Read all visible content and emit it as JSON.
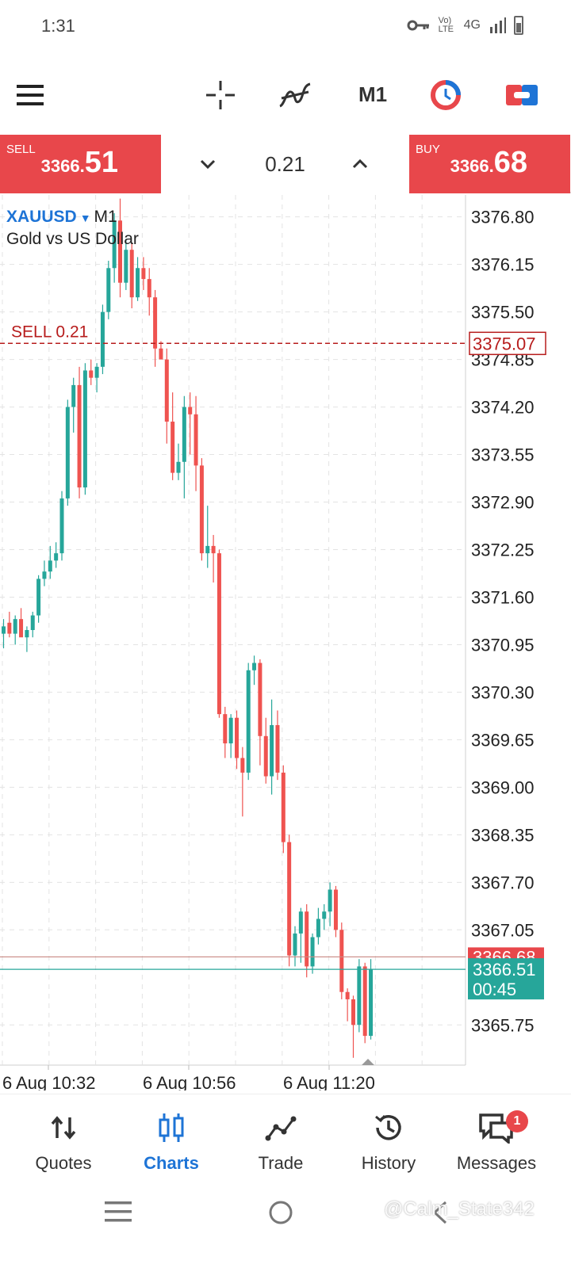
{
  "status_bar": {
    "time": "1:31",
    "network": "Vo) LTE",
    "signal_type": "4G"
  },
  "toolbar": {
    "timeframe": "M1",
    "icons": [
      "menu-icon",
      "crosshair-icon",
      "indicators-icon",
      "timeframe",
      "chart-timer-icon",
      "one-click-trading-icon"
    ]
  },
  "trade_panel": {
    "sell_label": "SELL",
    "sell_price_small": "3366.",
    "sell_price_big": "51",
    "buy_label": "BUY",
    "buy_price_small": "3366.",
    "buy_price_big": "68",
    "volume": "0.21"
  },
  "chart": {
    "symbol": "XAUUSD",
    "timeframe": "M1",
    "description": "Gold vs US Dollar",
    "sell_position_label": "SELL 0.21",
    "sell_position_price": "3375.07",
    "ask_label": "3366.68",
    "bid_label": "3366.51",
    "timer": "00:45",
    "colors": {
      "bull": "#26a69a",
      "bear": "#ef5350",
      "position": "#b71c1c"
    }
  },
  "chart_data": {
    "type": "candlestick",
    "title": "XAUUSD, M1",
    "subtitle": "Gold vs US Dollar",
    "y_tick_labels": [
      "3376.80",
      "3376.15",
      "3375.50",
      "3374.85",
      "3374.20",
      "3373.55",
      "3372.90",
      "3372.25",
      "3371.60",
      "3370.95",
      "3370.30",
      "3369.65",
      "3369.00",
      "3368.35",
      "3367.70",
      "3367.05",
      "3365.75"
    ],
    "x_tick_labels": [
      "6 Aug 10:32",
      "6 Aug 10:56",
      "6 Aug 11:20"
    ],
    "ylim": [
      3365.2,
      3377.1
    ],
    "ask": 3366.68,
    "bid": 3366.51,
    "sell_position": {
      "volume": 0.21,
      "price": 3375.07
    },
    "candles": [
      {
        "o": 3371.1,
        "h": 3371.3,
        "l": 3370.9,
        "c": 3371.2
      },
      {
        "o": 3371.25,
        "h": 3371.4,
        "l": 3371.05,
        "c": 3371.1
      },
      {
        "o": 3371.1,
        "h": 3371.35,
        "l": 3370.95,
        "c": 3371.3
      },
      {
        "o": 3371.3,
        "h": 3371.45,
        "l": 3371.1,
        "c": 3371.05
      },
      {
        "o": 3371.05,
        "h": 3371.2,
        "l": 3370.85,
        "c": 3371.15
      },
      {
        "o": 3371.15,
        "h": 3371.4,
        "l": 3371.05,
        "c": 3371.35
      },
      {
        "o": 3371.35,
        "h": 3371.9,
        "l": 3371.25,
        "c": 3371.85
      },
      {
        "o": 3371.85,
        "h": 3372.1,
        "l": 3371.75,
        "c": 3371.95
      },
      {
        "o": 3371.95,
        "h": 3372.3,
        "l": 3371.85,
        "c": 3372.1
      },
      {
        "o": 3372.1,
        "h": 3372.35,
        "l": 3372.0,
        "c": 3372.2
      },
      {
        "o": 3372.2,
        "h": 3373.05,
        "l": 3372.1,
        "c": 3372.95
      },
      {
        "o": 3372.95,
        "h": 3374.3,
        "l": 3372.85,
        "c": 3374.2
      },
      {
        "o": 3374.2,
        "h": 3374.6,
        "l": 3373.85,
        "c": 3374.5
      },
      {
        "o": 3374.5,
        "h": 3374.75,
        "l": 3372.95,
        "c": 3373.1
      },
      {
        "o": 3373.1,
        "h": 3374.8,
        "l": 3373.0,
        "c": 3374.7
      },
      {
        "o": 3374.7,
        "h": 3374.85,
        "l": 3374.5,
        "c": 3374.6
      },
      {
        "o": 3374.6,
        "h": 3374.8,
        "l": 3374.4,
        "c": 3374.75
      },
      {
        "o": 3374.75,
        "h": 3375.6,
        "l": 3374.65,
        "c": 3375.5
      },
      {
        "o": 3375.5,
        "h": 3376.2,
        "l": 3375.4,
        "c": 3376.1
      },
      {
        "o": 3376.1,
        "h": 3376.85,
        "l": 3375.9,
        "c": 3376.75
      },
      {
        "o": 3376.75,
        "h": 3377.05,
        "l": 3375.7,
        "c": 3375.9
      },
      {
        "o": 3375.9,
        "h": 3376.5,
        "l": 3375.8,
        "c": 3376.35
      },
      {
        "o": 3376.35,
        "h": 3376.45,
        "l": 3375.55,
        "c": 3375.7
      },
      {
        "o": 3375.7,
        "h": 3376.25,
        "l": 3375.65,
        "c": 3376.1
      },
      {
        "o": 3376.1,
        "h": 3376.25,
        "l": 3375.8,
        "c": 3375.95
      },
      {
        "o": 3375.95,
        "h": 3376.1,
        "l": 3375.45,
        "c": 3375.7
      },
      {
        "o": 3375.7,
        "h": 3375.8,
        "l": 3374.75,
        "c": 3375.0
      },
      {
        "o": 3375.0,
        "h": 3375.1,
        "l": 3374.9,
        "c": 3374.85
      },
      {
        "o": 3374.85,
        "h": 3375.0,
        "l": 3373.7,
        "c": 3374.0
      },
      {
        "o": 3374.0,
        "h": 3374.4,
        "l": 3373.2,
        "c": 3373.3
      },
      {
        "o": 3373.3,
        "h": 3373.7,
        "l": 3373.2,
        "c": 3373.45
      },
      {
        "o": 3373.45,
        "h": 3374.35,
        "l": 3372.95,
        "c": 3374.2
      },
      {
        "o": 3374.2,
        "h": 3374.4,
        "l": 3373.55,
        "c": 3374.1
      },
      {
        "o": 3374.1,
        "h": 3374.35,
        "l": 3373.05,
        "c": 3373.4
      },
      {
        "o": 3373.4,
        "h": 3373.5,
        "l": 3372.1,
        "c": 3372.2
      },
      {
        "o": 3372.2,
        "h": 3372.85,
        "l": 3372.0,
        "c": 3372.3
      },
      {
        "o": 3372.3,
        "h": 3372.45,
        "l": 3371.8,
        "c": 3372.2
      },
      {
        "o": 3372.2,
        "h": 3372.25,
        "l": 3369.95,
        "c": 3370.0
      },
      {
        "o": 3370.0,
        "h": 3370.1,
        "l": 3369.4,
        "c": 3369.6
      },
      {
        "o": 3369.6,
        "h": 3370.0,
        "l": 3369.4,
        "c": 3369.95
      },
      {
        "o": 3369.95,
        "h": 3370.05,
        "l": 3369.25,
        "c": 3369.4
      },
      {
        "o": 3369.4,
        "h": 3369.55,
        "l": 3368.6,
        "c": 3369.2
      },
      {
        "o": 3369.2,
        "h": 3370.7,
        "l": 3369.1,
        "c": 3370.6
      },
      {
        "o": 3370.6,
        "h": 3370.8,
        "l": 3370.4,
        "c": 3370.7
      },
      {
        "o": 3370.7,
        "h": 3370.75,
        "l": 3369.3,
        "c": 3369.7
      },
      {
        "o": 3369.7,
        "h": 3369.95,
        "l": 3369.05,
        "c": 3369.15
      },
      {
        "o": 3369.15,
        "h": 3370.2,
        "l": 3368.9,
        "c": 3369.85
      },
      {
        "o": 3369.85,
        "h": 3370.05,
        "l": 3369.1,
        "c": 3369.2
      },
      {
        "o": 3369.2,
        "h": 3369.3,
        "l": 3368.1,
        "c": 3368.25
      },
      {
        "o": 3368.25,
        "h": 3368.35,
        "l": 3366.55,
        "c": 3366.7
      },
      {
        "o": 3366.7,
        "h": 3367.1,
        "l": 3366.55,
        "c": 3367.0
      },
      {
        "o": 3367.0,
        "h": 3367.35,
        "l": 3366.6,
        "c": 3367.3
      },
      {
        "o": 3367.3,
        "h": 3367.4,
        "l": 3366.4,
        "c": 3366.55
      },
      {
        "o": 3366.55,
        "h": 3367.0,
        "l": 3366.45,
        "c": 3366.95
      },
      {
        "o": 3366.95,
        "h": 3367.35,
        "l": 3366.85,
        "c": 3367.2
      },
      {
        "o": 3367.2,
        "h": 3367.4,
        "l": 3367.05,
        "c": 3367.3
      },
      {
        "o": 3367.3,
        "h": 3367.7,
        "l": 3367.1,
        "c": 3367.6
      },
      {
        "o": 3367.6,
        "h": 3367.65,
        "l": 3366.95,
        "c": 3367.05
      },
      {
        "o": 3367.05,
        "h": 3367.15,
        "l": 3366.1,
        "c": 3366.2
      },
      {
        "o": 3366.2,
        "h": 3366.25,
        "l": 3365.8,
        "c": 3366.1
      },
      {
        "o": 3366.1,
        "h": 3366.15,
        "l": 3365.3,
        "c": 3365.75
      },
      {
        "o": 3365.75,
        "h": 3366.65,
        "l": 3365.65,
        "c": 3366.55
      },
      {
        "o": 3366.55,
        "h": 3366.6,
        "l": 3365.5,
        "c": 3365.6
      },
      {
        "o": 3365.6,
        "h": 3366.65,
        "l": 3365.55,
        "c": 3366.51
      }
    ]
  },
  "bottom_nav": {
    "items": [
      {
        "label": "Quotes",
        "icon": "quotes-icon"
      },
      {
        "label": "Charts",
        "icon": "charts-icon"
      },
      {
        "label": "Trade",
        "icon": "trade-icon"
      },
      {
        "label": "History",
        "icon": "history-icon"
      },
      {
        "label": "Messages",
        "icon": "messages-icon"
      }
    ],
    "active": "Charts",
    "messages_badge": "1"
  },
  "watermark": "@Calm_State342"
}
